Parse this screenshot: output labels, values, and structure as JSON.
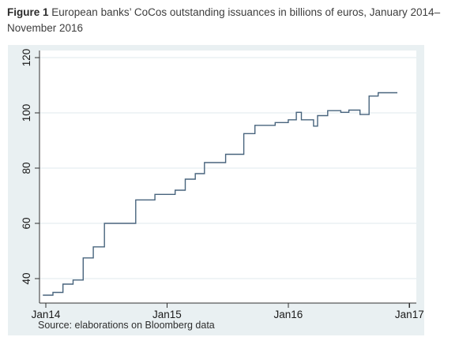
{
  "caption": {
    "label": "Figure 1",
    "text": " European banks’ CoCos outstanding issuances in billions of euros, January 2014–November 2016"
  },
  "source_note": "Source: elaborations on Bloomberg data",
  "chart_data": {
    "type": "line",
    "interpolation": "step-after",
    "title": "European banks' CoCos outstanding issuances in billions of euros, January 2014 - November 2016",
    "xlabel": "",
    "ylabel": "",
    "unit": "billions of euros",
    "grid": true,
    "legend": "none",
    "x_ticks": [
      {
        "label": "Jan14",
        "t": 0
      },
      {
        "label": "Jan15",
        "t": 12
      },
      {
        "label": "Jan16",
        "t": 24
      },
      {
        "label": "Jan17",
        "t": 36
      }
    ],
    "y_ticks": [
      40,
      60,
      80,
      100,
      120
    ],
    "ylim": [
      31.1,
      122.6
    ],
    "xlim_months": [
      -0.63,
      36.7
    ],
    "points": [
      [
        -0.3,
        34
      ],
      [
        0.7,
        35
      ],
      [
        1.7,
        38
      ],
      [
        2.7,
        39.5
      ],
      [
        3.7,
        47.5
      ],
      [
        4.7,
        51.5
      ],
      [
        5.8,
        60
      ],
      [
        8.9,
        68.5
      ],
      [
        10.8,
        70.5
      ],
      [
        12.8,
        72
      ],
      [
        13.8,
        76
      ],
      [
        14.8,
        78
      ],
      [
        15.7,
        82
      ],
      [
        17.8,
        85
      ],
      [
        19.6,
        92.5
      ],
      [
        20.7,
        95.5
      ],
      [
        22.7,
        96.5
      ],
      [
        24.0,
        97.5
      ],
      [
        24.8,
        100.2
      ],
      [
        25.3,
        97.5
      ],
      [
        26.5,
        95.2
      ],
      [
        26.9,
        99
      ],
      [
        27.9,
        100.8
      ],
      [
        29.2,
        100.2
      ],
      [
        30.0,
        101
      ],
      [
        31.1,
        99.4
      ],
      [
        32.0,
        106.1
      ],
      [
        32.9,
        107.3
      ]
    ],
    "end_t": 34.8,
    "colors": {
      "line": "#48647d",
      "grid": "#dfeaee",
      "panel": "#e9f0f2",
      "plot_bg": "#ffffff",
      "axis": "#303030",
      "tick_text": "#1a1a1a"
    }
  }
}
